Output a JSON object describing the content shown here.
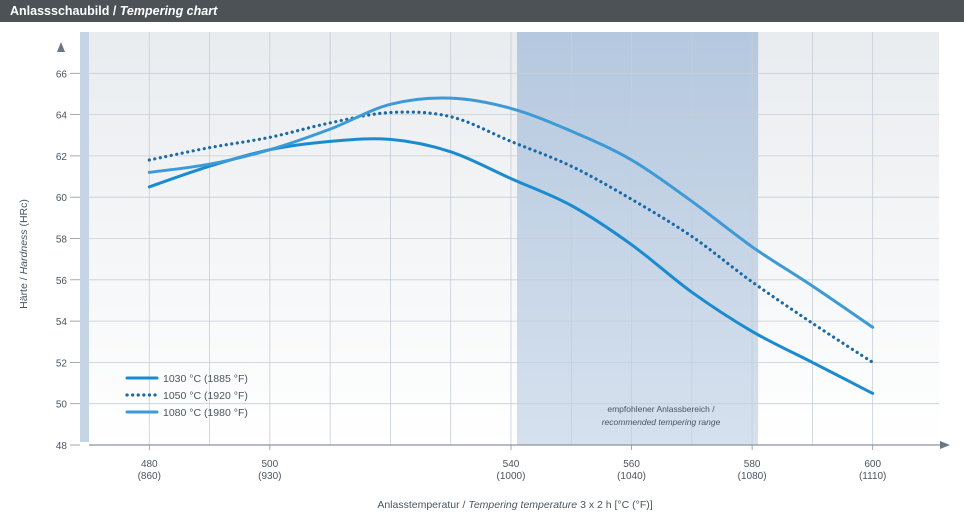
{
  "header": {
    "title_de": "Anlassschaubild",
    "separator": " / ",
    "title_en": "Tempering chart"
  },
  "chart_data": {
    "type": "line",
    "x_axis_label": {
      "de": "Anlasstemperatur",
      "separator": " / ",
      "en": "Tempering temperature",
      "unit": " 3 x 2 h [°C (°F)]"
    },
    "y_axis_label": {
      "de": "Härte",
      "separator": " / ",
      "en": "Hardness",
      "unit": " (HRc)"
    },
    "xlim": [
      470,
      611
    ],
    "ylim": [
      48,
      68
    ],
    "y_ticks": [
      48,
      50,
      52,
      54,
      56,
      58,
      60,
      62,
      64,
      66
    ],
    "x_ticks": [
      {
        "value": 480,
        "line1": "480",
        "line2": "(860)"
      },
      {
        "value": 500,
        "line1": "500",
        "line2": "(930)"
      },
      {
        "value": 540,
        "line1": "540",
        "line2": "(1000)"
      },
      {
        "value": 560,
        "line1": "560",
        "line2": "(1040)"
      },
      {
        "value": 580,
        "line1": "580",
        "line2": "(1080)"
      },
      {
        "value": 600,
        "line1": "600",
        "line2": "(1110)"
      }
    ],
    "recommended_range": {
      "x_from": 541,
      "x_to": 581,
      "label_de": "empfohlener Anlassbereich /",
      "label_en": "recommended tempering range"
    },
    "grid": true,
    "legend_position": "bottom-left",
    "series": [
      {
        "name": "1030 °C (1885 °F)",
        "color": "#1b8bd0",
        "style": "solid",
        "points": [
          [
            480,
            60.5
          ],
          [
            490,
            61.5
          ],
          [
            500,
            62.3
          ],
          [
            510,
            62.7
          ],
          [
            520,
            62.8
          ],
          [
            530,
            62.2
          ],
          [
            540,
            60.9
          ],
          [
            550,
            59.6
          ],
          [
            560,
            57.7
          ],
          [
            570,
            55.4
          ],
          [
            580,
            53.5
          ],
          [
            590,
            52.0
          ],
          [
            600,
            50.5
          ]
        ]
      },
      {
        "name": "1050 °C (1920 °F)",
        "color": "#1a6aa8",
        "style": "dotted",
        "points": [
          [
            480,
            61.8
          ],
          [
            490,
            62.4
          ],
          [
            500,
            62.9
          ],
          [
            510,
            63.6
          ],
          [
            520,
            64.1
          ],
          [
            530,
            63.9
          ],
          [
            540,
            62.7
          ],
          [
            550,
            61.5
          ],
          [
            560,
            59.9
          ],
          [
            570,
            58.1
          ],
          [
            580,
            55.9
          ],
          [
            590,
            53.9
          ],
          [
            600,
            52.0
          ]
        ]
      },
      {
        "name": "1080 °C (1980 °F)",
        "color": "#3d9ad6",
        "style": "solid",
        "points": [
          [
            480,
            61.2
          ],
          [
            490,
            61.6
          ],
          [
            500,
            62.3
          ],
          [
            510,
            63.3
          ],
          [
            520,
            64.5
          ],
          [
            530,
            64.8
          ],
          [
            540,
            64.3
          ],
          [
            550,
            63.2
          ],
          [
            560,
            61.8
          ],
          [
            570,
            59.8
          ],
          [
            580,
            57.6
          ],
          [
            590,
            55.7
          ],
          [
            600,
            53.7
          ]
        ]
      }
    ]
  }
}
